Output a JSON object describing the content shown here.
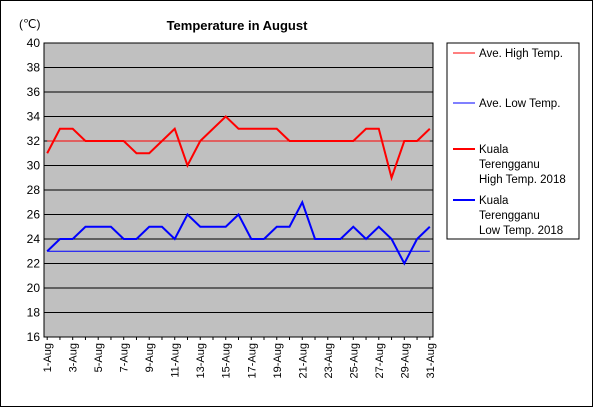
{
  "chart_data": {
    "type": "line",
    "title": "Temperature in August",
    "unit_label": "(℃)",
    "ylim": [
      16,
      40
    ],
    "y_ticks": [
      16,
      18,
      20,
      22,
      24,
      26,
      28,
      30,
      32,
      34,
      36,
      38,
      40
    ],
    "grid": true,
    "legend_position": "right",
    "x": [
      "1-Aug",
      "2-Aug",
      "3-Aug",
      "4-Aug",
      "5-Aug",
      "6-Aug",
      "7-Aug",
      "8-Aug",
      "9-Aug",
      "10-Aug",
      "11-Aug",
      "12-Aug",
      "13-Aug",
      "14-Aug",
      "15-Aug",
      "16-Aug",
      "17-Aug",
      "18-Aug",
      "19-Aug",
      "20-Aug",
      "21-Aug",
      "22-Aug",
      "23-Aug",
      "24-Aug",
      "25-Aug",
      "26-Aug",
      "27-Aug",
      "28-Aug",
      "29-Aug",
      "30-Aug",
      "31-Aug"
    ],
    "x_tick_labels": [
      "1-Aug",
      "3-Aug",
      "5-Aug",
      "7-Aug",
      "9-Aug",
      "11-Aug",
      "13-Aug",
      "15-Aug",
      "17-Aug",
      "19-Aug",
      "21-Aug",
      "23-Aug",
      "25-Aug",
      "27-Aug",
      "29-Aug",
      "31-Aug"
    ],
    "series": [
      {
        "name": "Ave. High Temp.",
        "color": "#ff0000",
        "width": 1,
        "values": [
          32,
          32,
          32,
          32,
          32,
          32,
          32,
          32,
          32,
          32,
          32,
          32,
          32,
          32,
          32,
          32,
          32,
          32,
          32,
          32,
          32,
          32,
          32,
          32,
          32,
          32,
          32,
          32,
          32,
          32,
          32
        ]
      },
      {
        "name": "Ave. Low Temp.",
        "color": "#0000ff",
        "width": 1,
        "values": [
          23,
          23,
          23,
          23,
          23,
          23,
          23,
          23,
          23,
          23,
          23,
          23,
          23,
          23,
          23,
          23,
          23,
          23,
          23,
          23,
          23,
          23,
          23,
          23,
          23,
          23,
          23,
          23,
          23,
          23,
          23
        ]
      },
      {
        "name": "Kuala Terengganu High Temp. 2018",
        "color": "#ff0000",
        "width": 2,
        "values": [
          31,
          33,
          33,
          32,
          32,
          32,
          32,
          31,
          31,
          32,
          33,
          30,
          32,
          33,
          34,
          33,
          33,
          33,
          33,
          32,
          32,
          32,
          32,
          32,
          32,
          33,
          33,
          29,
          32,
          32,
          33
        ]
      },
      {
        "name": "Kuala Terengganu Low Temp. 2018",
        "color": "#0000ff",
        "width": 2,
        "values": [
          23,
          24,
          24,
          25,
          25,
          25,
          24,
          24,
          25,
          25,
          24,
          26,
          25,
          25,
          25,
          26,
          24,
          24,
          25,
          25,
          27,
          24,
          24,
          24,
          25,
          24,
          25,
          24,
          22,
          24,
          25
        ]
      }
    ]
  },
  "legend": {
    "items": [
      {
        "lines": [
          "Ave. High Temp."
        ]
      },
      {
        "lines": [
          "Ave. Low Temp."
        ]
      },
      {
        "lines": [
          "Kuala",
          "Terengganu",
          "High Temp. 2018"
        ]
      },
      {
        "lines": [
          "Kuala",
          "Terengganu",
          "Low Temp. 2018"
        ]
      }
    ]
  }
}
